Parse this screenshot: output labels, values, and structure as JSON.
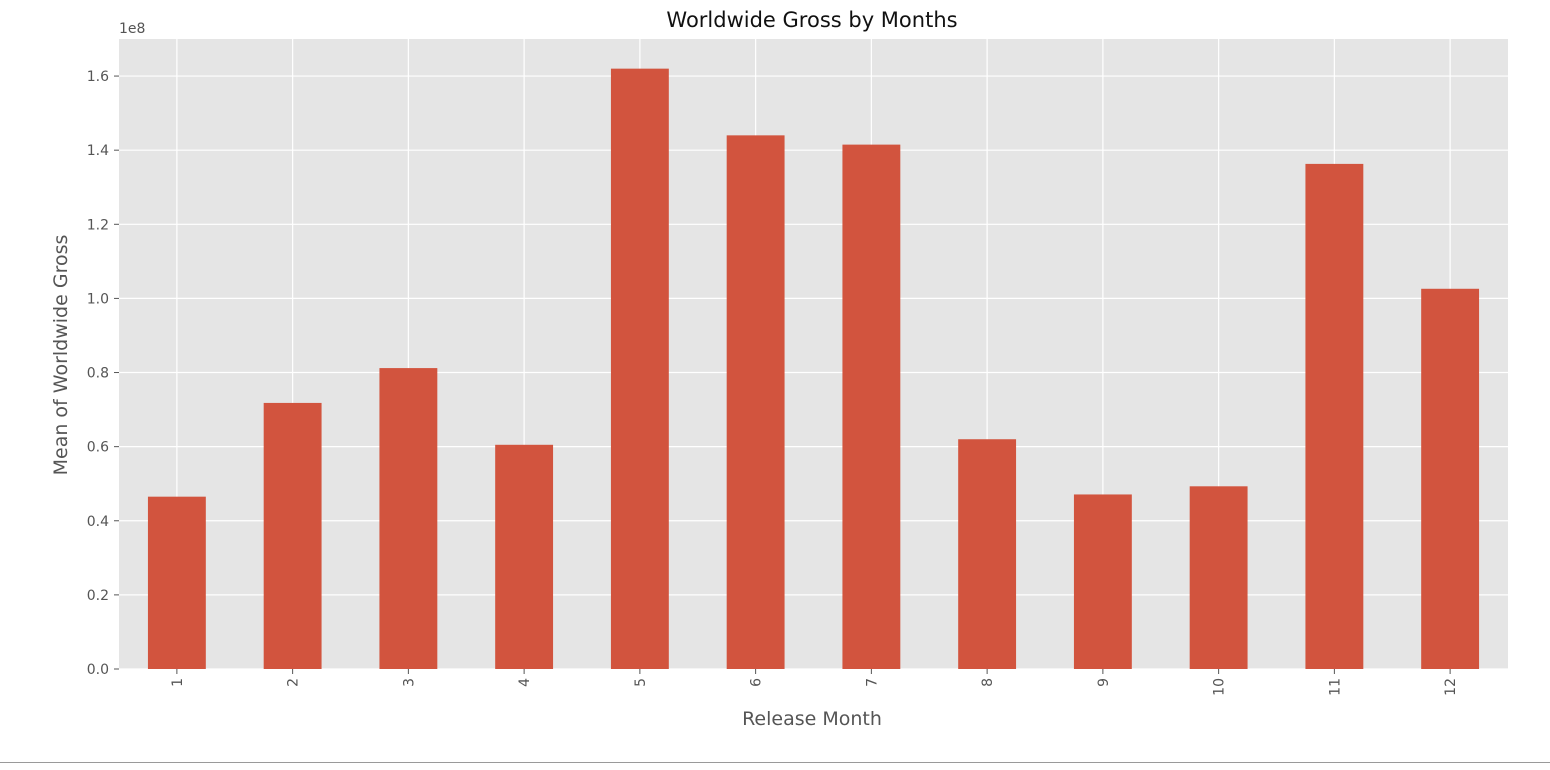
{
  "chart_data": {
    "type": "bar",
    "title": "Worldwide Gross by Months",
    "xlabel": "Release Month",
    "ylabel": "Mean of Worldwide Gross",
    "offset_label": "1e8",
    "categories": [
      "1",
      "2",
      "3",
      "4",
      "5",
      "6",
      "7",
      "8",
      "9",
      "10",
      "11",
      "12"
    ],
    "values": [
      46500000,
      71800000,
      81200000,
      60500000,
      162000000,
      144000000,
      141500000,
      62000000,
      47100000,
      49300000,
      136300000,
      102600000
    ],
    "ylim": [
      0,
      170000000
    ],
    "yticks": [
      0,
      20000000,
      40000000,
      60000000,
      80000000,
      100000000,
      120000000,
      140000000,
      160000000
    ],
    "ytick_labels": [
      "0.0",
      "0.2",
      "0.4",
      "0.6",
      "0.8",
      "1.0",
      "1.2",
      "1.4",
      "1.6"
    ],
    "grid": true,
    "bar_color": "#d2543e",
    "plot_background": "#e5e5e5",
    "grid_color": "#ffffff",
    "text_color": "#555555",
    "title_color": "#111111"
  }
}
